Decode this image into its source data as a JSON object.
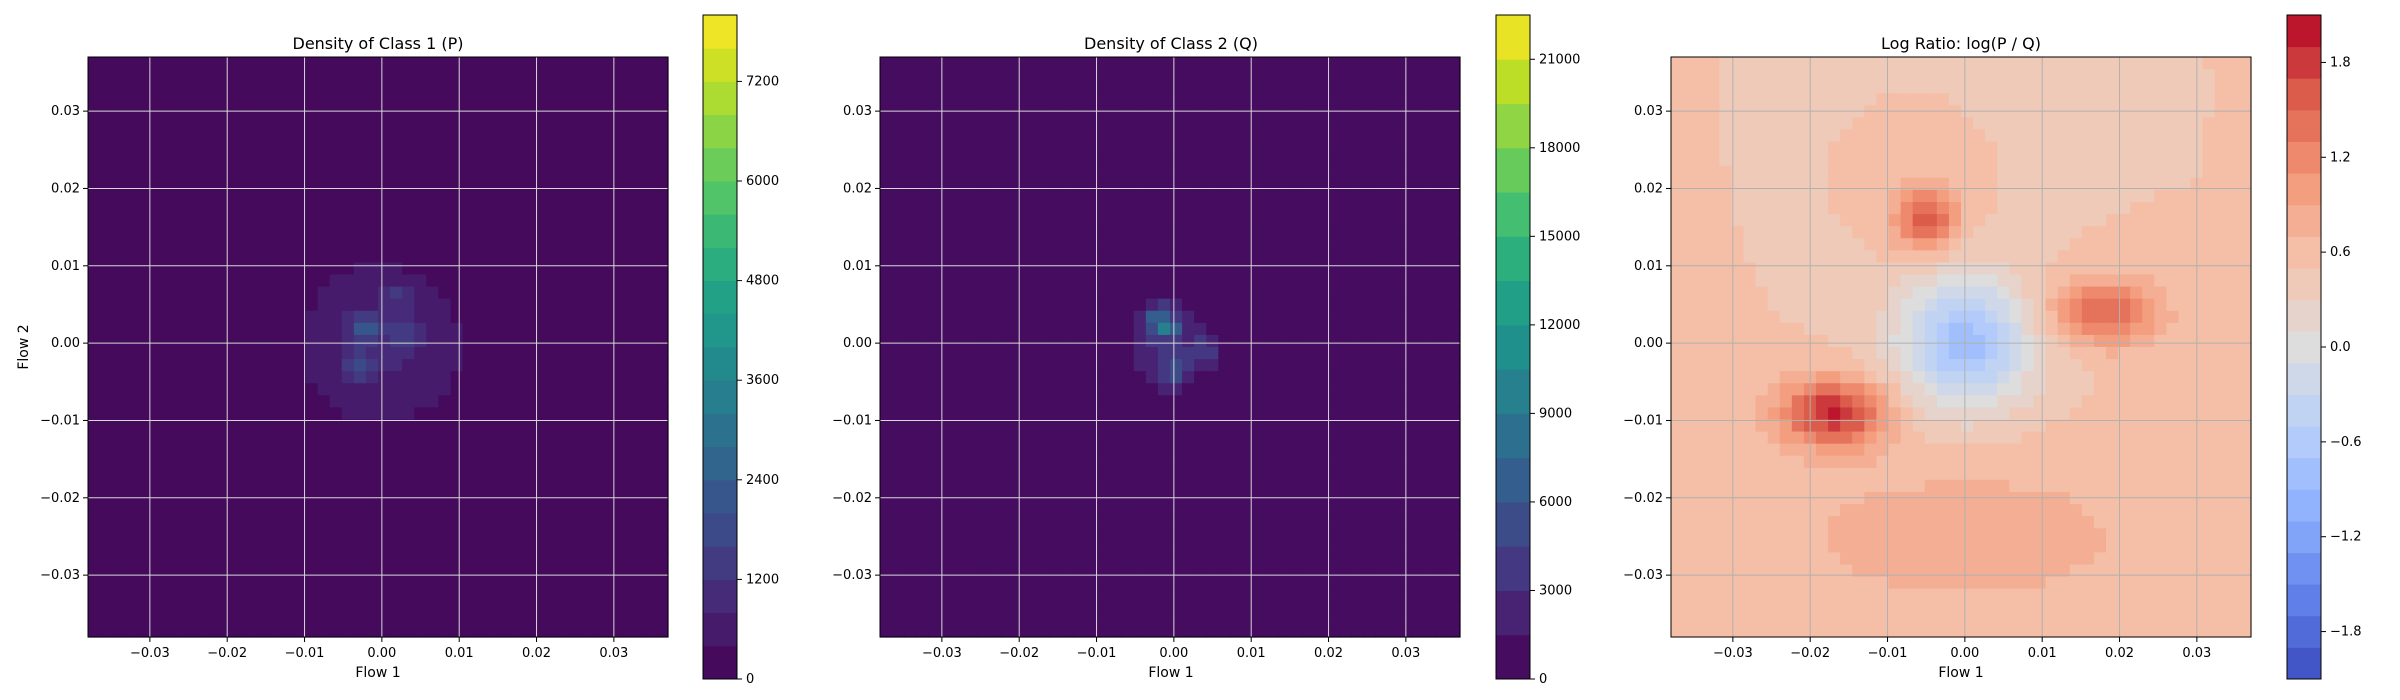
{
  "chart_data": [
    {
      "type": "heatmap",
      "title": "Density of Class 1 (P)",
      "xlabel": "Flow 1",
      "ylabel": "Flow 2",
      "xlim": [
        -0.038,
        0.037
      ],
      "ylim": [
        -0.038,
        0.037
      ],
      "xticks": [
        -0.03,
        -0.02,
        -0.01,
        0.0,
        0.01,
        0.02,
        0.03
      ],
      "xtick_labels": [
        "−0.03",
        "−0.02",
        "−0.01",
        "0.00",
        "0.01",
        "0.02",
        "0.03"
      ],
      "yticks": [
        -0.03,
        -0.02,
        -0.01,
        0.0,
        0.01,
        0.02,
        0.03
      ],
      "ytick_labels": [
        "−0.03",
        "−0.02",
        "−0.01",
        "0.00",
        "0.01",
        "0.02",
        "0.03"
      ],
      "grid": true,
      "colormap": "viridis",
      "colorbar": {
        "min": 0,
        "max": 8000,
        "levels": 20,
        "ticks": [
          0,
          1200,
          2400,
          3600,
          4800,
          6000,
          7200
        ],
        "tick_labels": [
          "0",
          "1200",
          "2400",
          "3600",
          "4800",
          "6000",
          "7200"
        ]
      },
      "blobs": [
        {
          "x": 0.0,
          "y": 0.0,
          "sx": 0.008,
          "sy": 0.008,
          "v": 900
        },
        {
          "x": -0.002,
          "y": 0.002,
          "sx": 0.0015,
          "sy": 0.0012,
          "v": 1400
        },
        {
          "x": -0.003,
          "y": -0.003,
          "sx": 0.0012,
          "sy": 0.0012,
          "v": 1200
        },
        {
          "x": 0.002,
          "y": 0.006,
          "sx": 0.001,
          "sy": 0.001,
          "v": 800
        },
        {
          "x": 0.003,
          "y": 0.001,
          "sx": 0.0012,
          "sy": 0.0012,
          "v": 900
        }
      ]
    },
    {
      "type": "heatmap",
      "title": "Density of Class 2 (Q)",
      "xlabel": "Flow 1",
      "ylabel": "",
      "xlim": [
        -0.038,
        0.037
      ],
      "ylim": [
        -0.038,
        0.037
      ],
      "xticks": [
        -0.03,
        -0.02,
        -0.01,
        0.0,
        0.01,
        0.02,
        0.03
      ],
      "xtick_labels": [
        "−0.03",
        "−0.02",
        "−0.01",
        "0.00",
        "0.01",
        "0.02",
        "0.03"
      ],
      "yticks": [
        -0.03,
        -0.02,
        -0.01,
        0.0,
        0.01,
        0.02,
        0.03
      ],
      "ytick_labels": [
        "−0.03",
        "−0.02",
        "−0.01",
        "0.00",
        "0.01",
        "0.02",
        "0.03"
      ],
      "grid": true,
      "colormap": "viridis",
      "colorbar": {
        "min": 0,
        "max": 22500,
        "levels": 15,
        "ticks": [
          0,
          3000,
          6000,
          9000,
          12000,
          15000,
          18000,
          21000
        ],
        "tick_labels": [
          "0",
          "3000",
          "6000",
          "9000",
          "12000",
          "15000",
          "18000",
          "21000"
        ]
      },
      "blobs": [
        {
          "x": -0.001,
          "y": 0.0,
          "sx": 0.004,
          "sy": 0.0045,
          "v": 3000
        },
        {
          "x": -0.002,
          "y": 0.003,
          "sx": 0.0012,
          "sy": 0.0012,
          "v": 6500
        },
        {
          "x": -0.0005,
          "y": 0.0015,
          "sx": 0.0005,
          "sy": 0.0005,
          "v": 15000
        },
        {
          "x": 0.0,
          "y": -0.004,
          "sx": 0.0012,
          "sy": 0.0012,
          "v": 4000
        },
        {
          "x": 0.004,
          "y": -0.001,
          "sx": 0.0015,
          "sy": 0.0012,
          "v": 3000
        }
      ]
    },
    {
      "type": "heatmap",
      "title": "Log Ratio: log(P / Q)",
      "xlabel": "Flow 1",
      "ylabel": "",
      "xlim": [
        -0.038,
        0.037
      ],
      "ylim": [
        -0.038,
        0.037
      ],
      "xticks": [
        -0.03,
        -0.02,
        -0.01,
        0.0,
        0.01,
        0.02,
        0.03
      ],
      "xtick_labels": [
        "−0.03",
        "−0.02",
        "−0.01",
        "0.00",
        "0.01",
        "0.02",
        "0.03"
      ],
      "yticks": [
        -0.03,
        -0.02,
        -0.01,
        0.0,
        0.01,
        0.02,
        0.03
      ],
      "ytick_labels": [
        "−0.03",
        "−0.02",
        "−0.01",
        "0.00",
        "0.01",
        "0.02",
        "0.03"
      ],
      "grid": true,
      "colormap": "coolwarm",
      "colorbar": {
        "min": -2.1,
        "max": 2.1,
        "levels": 21,
        "ticks": [
          -1.8,
          -1.2,
          -0.6,
          0.0,
          0.6,
          1.2,
          1.8
        ],
        "tick_labels": [
          "−1.8",
          "−1.2",
          "−0.6",
          "0.0",
          "0.6",
          "1.2",
          "1.8"
        ]
      },
      "background_value": 0.5,
      "blobs": [
        {
          "x": 0.0,
          "y": 0.0,
          "sx": 0.006,
          "sy": 0.006,
          "v": -1.3
        },
        {
          "x": -0.017,
          "y": -0.009,
          "sx": 0.005,
          "sy": 0.003,
          "v": 1.4
        },
        {
          "x": 0.018,
          "y": 0.004,
          "sx": 0.005,
          "sy": 0.003,
          "v": 1.0
        },
        {
          "x": -0.005,
          "y": 0.016,
          "sx": 0.003,
          "sy": 0.003,
          "v": 1.1
        },
        {
          "x": 0.0,
          "y": -0.025,
          "sx": 0.02,
          "sy": 0.008,
          "v": 0.3
        }
      ]
    }
  ]
}
